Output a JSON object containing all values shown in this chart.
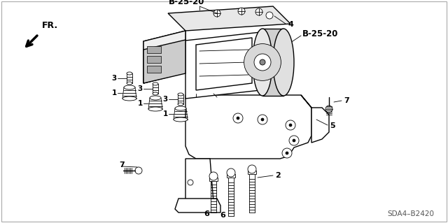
{
  "background_color": "#ffffff",
  "line_color": "#000000",
  "text_color": "#000000",
  "border_color": "#aaaaaa",
  "diagram_ref": "SDA4–B2420",
  "labels": {
    "b2520_top": "B-25-20",
    "b2520_right": "B-25-20",
    "num_2": "2",
    "num_3": "3",
    "num_4": "4",
    "num_5": "5",
    "num_6": "6",
    "num_7": "7",
    "num_1": "1",
    "fr": "FR."
  }
}
